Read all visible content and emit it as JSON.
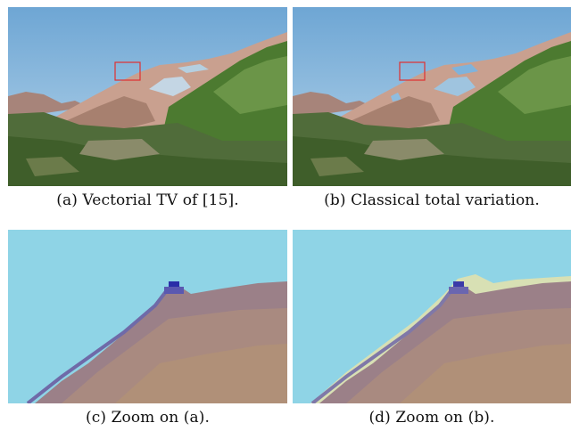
{
  "figure": {
    "panels": [
      {
        "id": "a",
        "caption": "(a) Vectorial TV of [15]."
      },
      {
        "id": "b",
        "caption": "(b) Classical total variation."
      },
      {
        "id": "c",
        "caption": "(c) Zoom on (a)."
      },
      {
        "id": "d",
        "caption": "(d) Zoom on (b)."
      }
    ]
  },
  "colors": {
    "sky": "#7fb0d8",
    "sky_light": "#a9cde6",
    "mountain": "#c9a08f",
    "grass": "#4f7a33",
    "zoom_box": "#e03030",
    "zoom_sky": "#8fd6e6",
    "zoom_rock": "#9a7f86"
  }
}
